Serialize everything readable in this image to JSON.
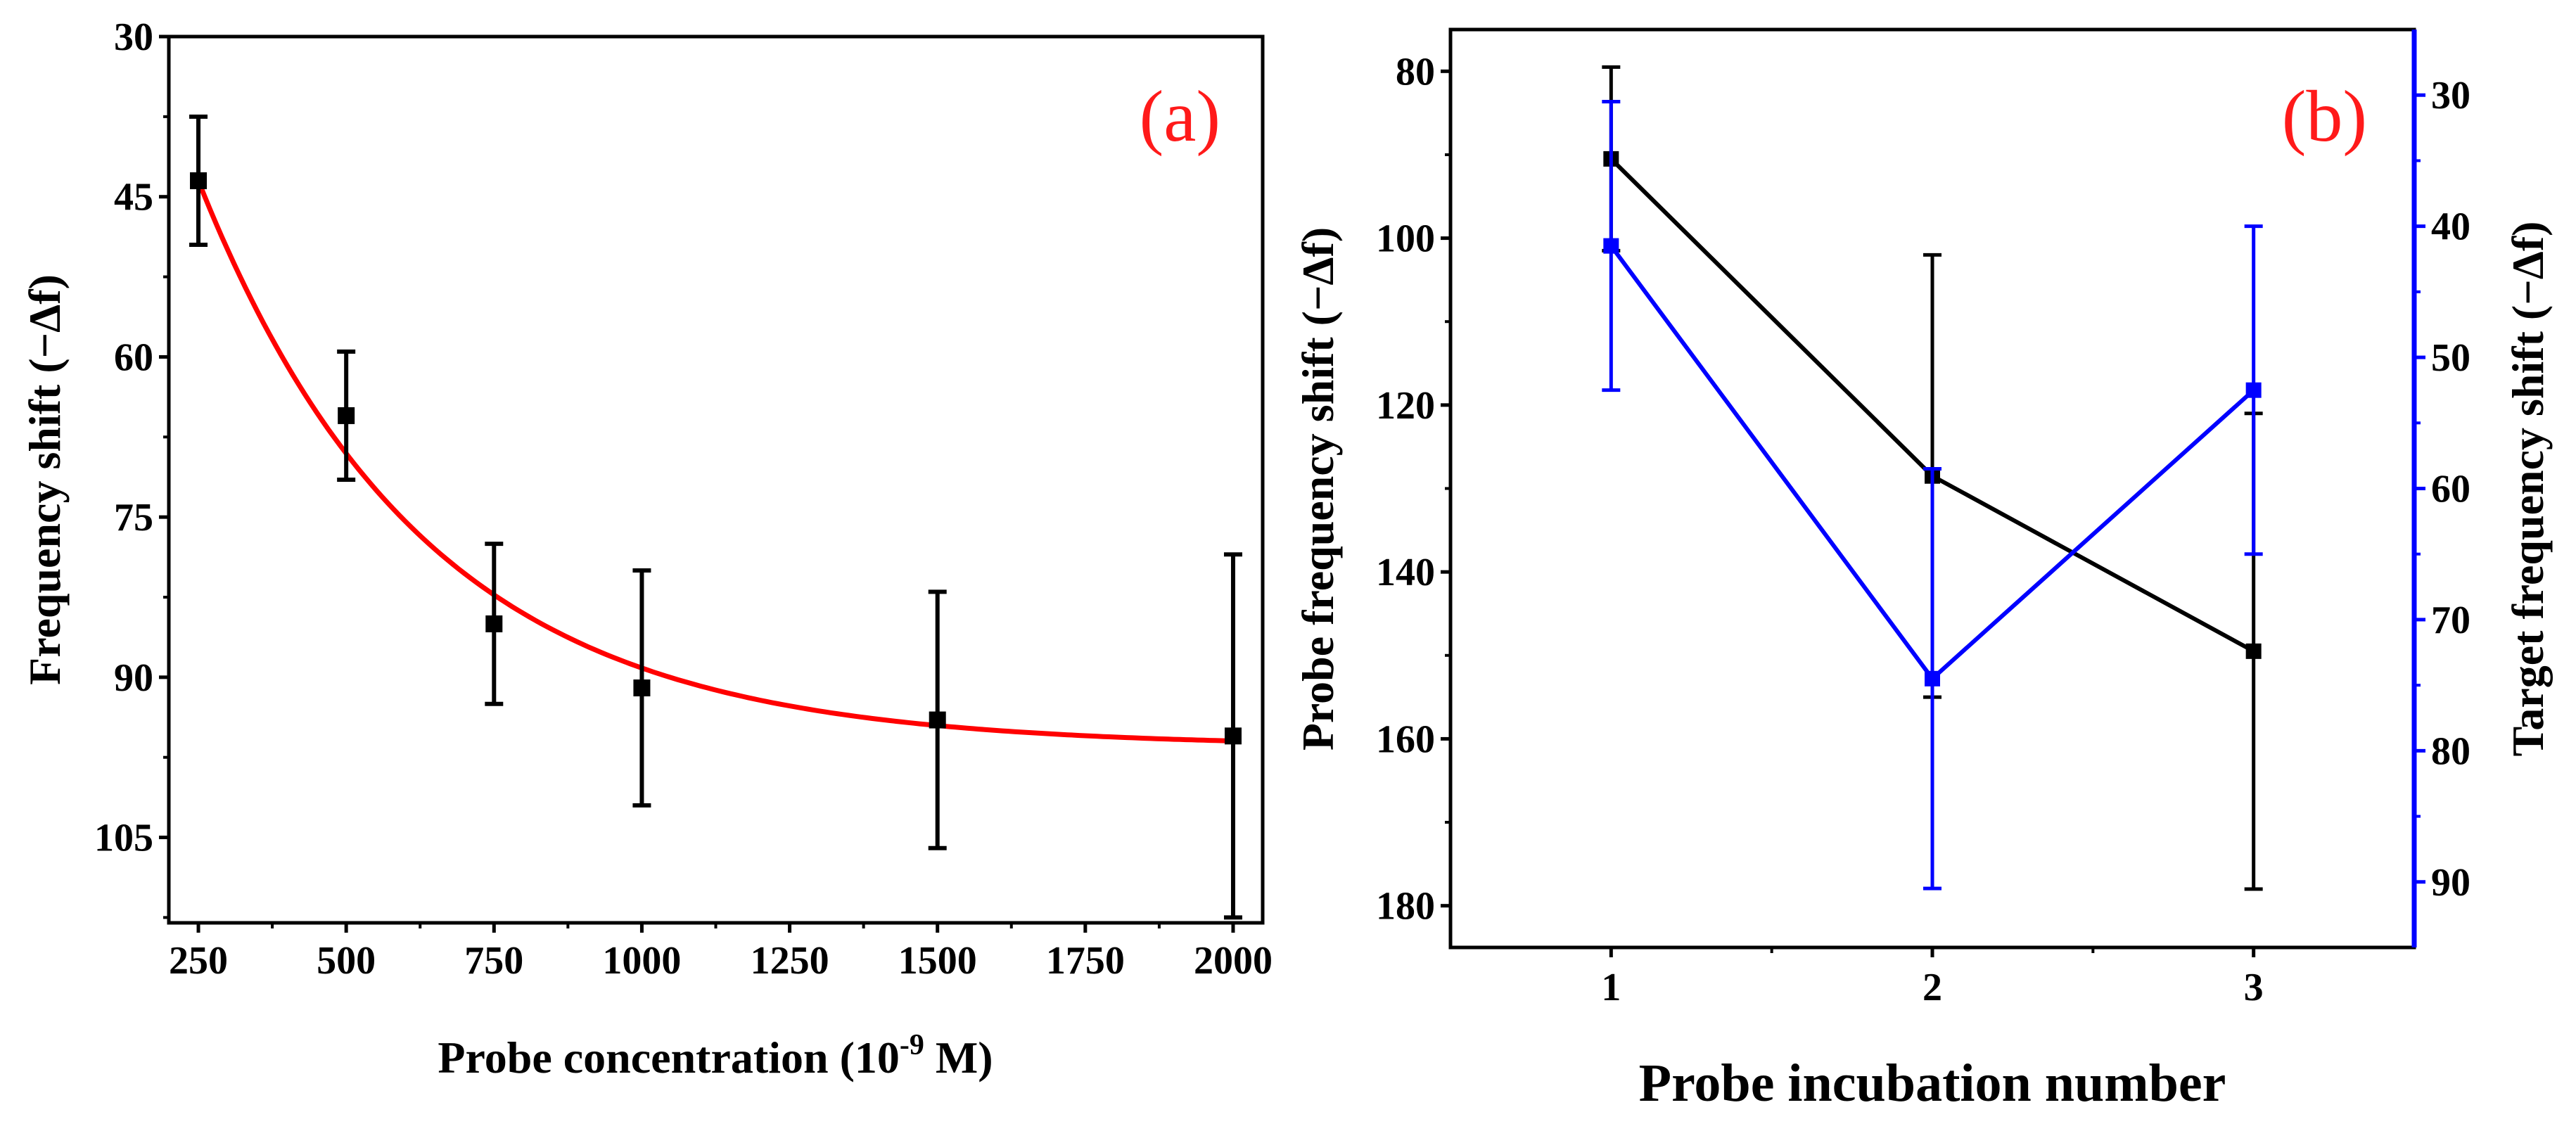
{
  "chart_data": [
    {
      "type": "scatter",
      "panel_label": "(a)",
      "xlabel_main": "Probe concentration (10",
      "xlabel_exp": "-9",
      "xlabel_tail": " M)",
      "ylabel": "Frequency shift (−Δf)",
      "xlim": [
        200,
        2050
      ],
      "ylim": [
        30,
        113
      ],
      "y_inverted": true,
      "x_ticks": [
        250,
        500,
        750,
        1000,
        1250,
        1500,
        1750,
        2000
      ],
      "x_tick_labels": [
        "250",
        "500",
        "750",
        "1000",
        "1250",
        "1500",
        "1750",
        "2000"
      ],
      "y_ticks": [
        30,
        45,
        60,
        75,
        90,
        105
      ],
      "y_tick_labels": [
        "30",
        "45",
        "60",
        "75",
        "90",
        "105"
      ],
      "series": [
        {
          "x": [
            250,
            500,
            750,
            1000,
            1500,
            2000
          ],
          "y": [
            43.5,
            65.5,
            85,
            91,
            94,
            95.5
          ],
          "error": [
            6,
            6,
            7.5,
            11,
            12,
            17
          ],
          "color": "#000000"
        }
      ],
      "fit": {
        "type": "exponential",
        "y0": 96.5,
        "A": 53,
        "t": 380,
        "x0": 250,
        "color": "#ff0000"
      },
      "grid": false
    },
    {
      "type": "line",
      "panel_label": "(b)",
      "xlabel": "Probe incubation number",
      "ylabel_left": "Probe frequency shift (−Δf)",
      "ylabel_right": "Target frequency shift (−Δf)",
      "xlim": [
        0.5,
        3.5
      ],
      "ylim_left": [
        75,
        185
      ],
      "ylim_right": [
        25,
        95
      ],
      "y_inverted": true,
      "x_ticks": [
        1,
        2,
        3
      ],
      "x_tick_labels": [
        "1",
        "2",
        "3"
      ],
      "y_left_ticks": [
        80,
        100,
        120,
        140,
        160,
        180
      ],
      "y_left_tick_labels": [
        "80",
        "100",
        "120",
        "140",
        "160",
        "180"
      ],
      "y_right_ticks": [
        30,
        40,
        50,
        60,
        70,
        80,
        90
      ],
      "y_right_tick_labels": [
        "30",
        "40",
        "50",
        "60",
        "70",
        "80",
        "90"
      ],
      "series": [
        {
          "axis": "left",
          "x": [
            1,
            2,
            3
          ],
          "y": [
            90.5,
            128.5,
            149.5
          ],
          "error": [
            11,
            26.5,
            28.5
          ],
          "color": "#000000"
        },
        {
          "axis": "right",
          "x": [
            1,
            2,
            3
          ],
          "y": [
            41.5,
            74.5,
            52.5
          ],
          "error": [
            11,
            16,
            12.5
          ],
          "color": "#0000ff"
        }
      ],
      "grid": false
    }
  ]
}
